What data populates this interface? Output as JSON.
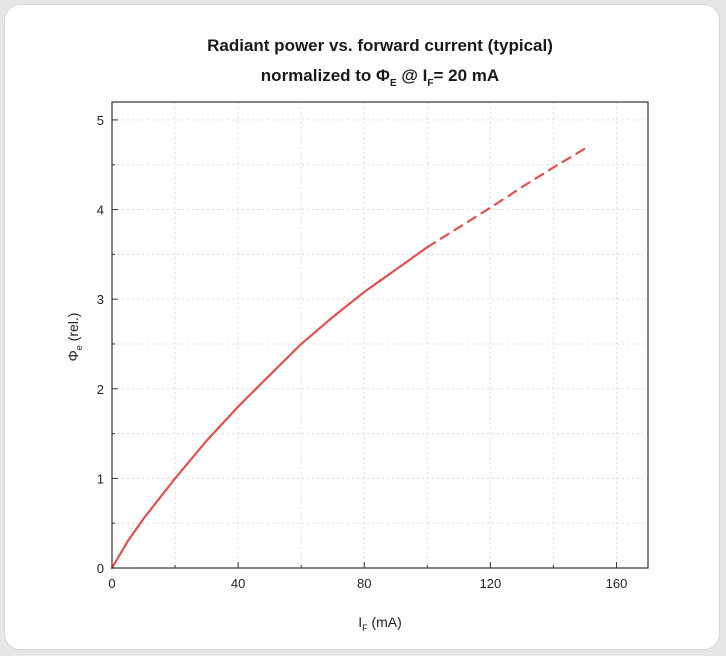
{
  "chart_data": {
    "type": "line",
    "title_line1": "Radiant power vs. forward current (typical)",
    "title_line2_prefix": "normalized to Φ",
    "title_line2_sub1": "E",
    "title_line2_mid": " @ I",
    "title_line2_sub2": "F",
    "title_line2_suffix": "= 20 mA",
    "xlabel_main": "I",
    "xlabel_sub": "F",
    "xlabel_unit": " (mA)",
    "ylabel_main": "Φ",
    "ylabel_sub": "e",
    "ylabel_unit": " (rel.)",
    "xlim": [
      0,
      170
    ],
    "ylim": [
      0,
      5.2
    ],
    "x_ticks": [
      0,
      40,
      80,
      120,
      160
    ],
    "y_ticks": [
      0,
      1,
      2,
      3,
      4,
      5
    ],
    "grid": true,
    "series": [
      {
        "style": "solid",
        "color": "#e05050",
        "x": [
          0,
          5,
          10,
          20,
          30,
          40,
          50,
          60,
          70,
          80,
          90,
          100
        ],
        "y": [
          0,
          0.3,
          0.55,
          1.0,
          1.42,
          1.8,
          2.15,
          2.5,
          2.8,
          3.08,
          3.33,
          3.58
        ]
      },
      {
        "style": "dashed",
        "color": "#e05050",
        "x": [
          100,
          110,
          120,
          130,
          140,
          150
        ],
        "y": [
          3.58,
          3.8,
          4.02,
          4.25,
          4.47,
          4.68
        ]
      }
    ]
  }
}
